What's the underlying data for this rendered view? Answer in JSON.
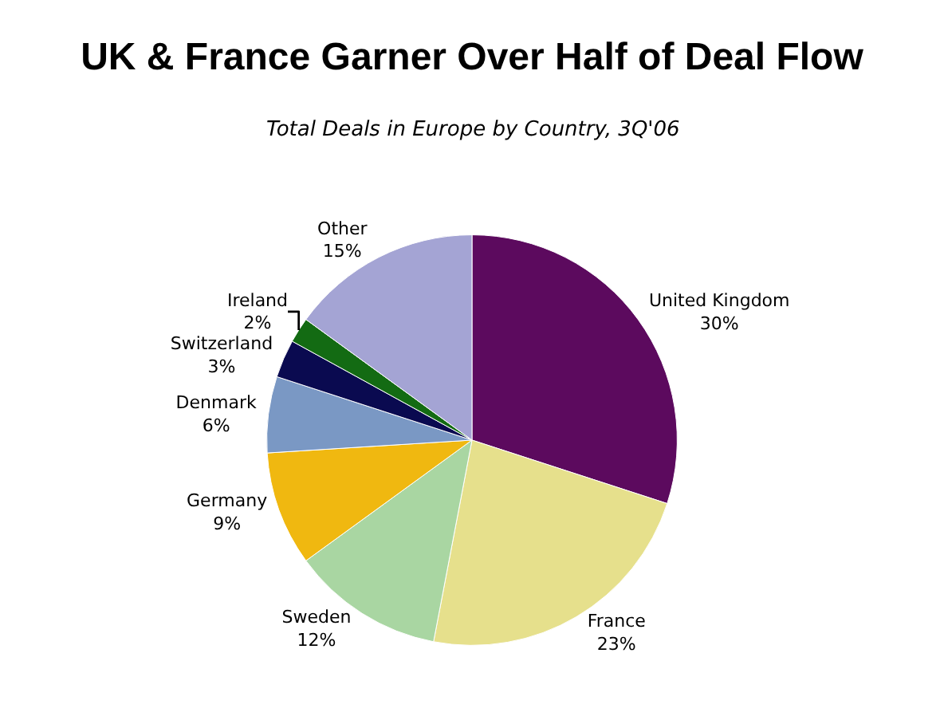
{
  "chart_data": {
    "type": "pie",
    "title": "UK & France Garner Over Half of Deal Flow",
    "subtitle": "Total Deals in Europe by Country, 3Q'06",
    "categories": [
      "United Kingdom",
      "France",
      "Sweden",
      "Germany",
      "Denmark",
      "Switzerland",
      "Ireland",
      "Other"
    ],
    "values": [
      30,
      23,
      12,
      9,
      6,
      3,
      2,
      15
    ],
    "value_labels": [
      "30%",
      "23%",
      "12%",
      "9%",
      "6%",
      "3%",
      "2%",
      "15%"
    ],
    "colors": [
      "#5c0a5e",
      "#e6e08c",
      "#a9d6a2",
      "#f0b810",
      "#7a98c4",
      "#0a0a50",
      "#136b13",
      "#a4a4d4"
    ],
    "legend": false
  }
}
